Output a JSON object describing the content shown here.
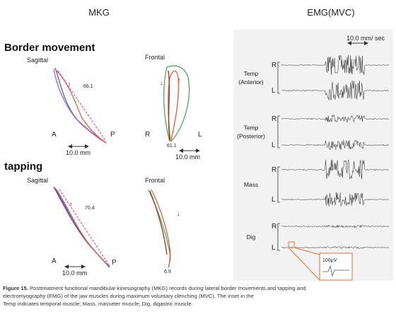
{
  "left": {
    "title": "MKG",
    "sections": [
      {
        "title": "Border movement",
        "panels": [
          {
            "title": "Sagittal",
            "labels": [
              "A",
              "P"
            ],
            "scale": "10.0 mm",
            "value": "66.1"
          },
          {
            "title": "Frontal",
            "labels": [
              "R",
              "L"
            ],
            "scale": "10.0 mm",
            "value": "61.1"
          }
        ]
      },
      {
        "title": "tapping",
        "panels": [
          {
            "title": "Sagittal",
            "labels": [
              "A",
              "P"
            ],
            "scale": "10.0 mm",
            "value": "70.4"
          },
          {
            "title": "Frontal",
            "labels": [],
            "scale": "",
            "value": "6.9"
          }
        ]
      }
    ]
  },
  "right": {
    "title": "EMG(MVC)",
    "scale": "10.0 mm/ sec",
    "muscles": [
      {
        "name": [
          "Temp",
          "(Anterior)"
        ],
        "sides": [
          "R",
          "L"
        ]
      },
      {
        "name": [
          "Temp",
          "(Posterior)"
        ],
        "sides": [
          "R",
          "L"
        ]
      },
      {
        "name": [
          "Mass"
        ],
        "sides": [
          "R",
          "L"
        ]
      },
      {
        "name": [
          "Dig"
        ],
        "sides": [
          "R",
          "L"
        ]
      }
    ],
    "inset": "100μV"
  },
  "caption": {
    "label": "Figure 15.",
    "lines": [
      "Posttreatment functional mandibular kinesiography (MKG) records during lateral border movements and tapping and",
      "electromyography (EMG) of the jaw muscles during maximum voluntary clenching (MVC). The inset in the",
      "Temp indicates temporal muscle; Mass, masseter muscle; Dig, digastric muscle."
    ]
  }
}
